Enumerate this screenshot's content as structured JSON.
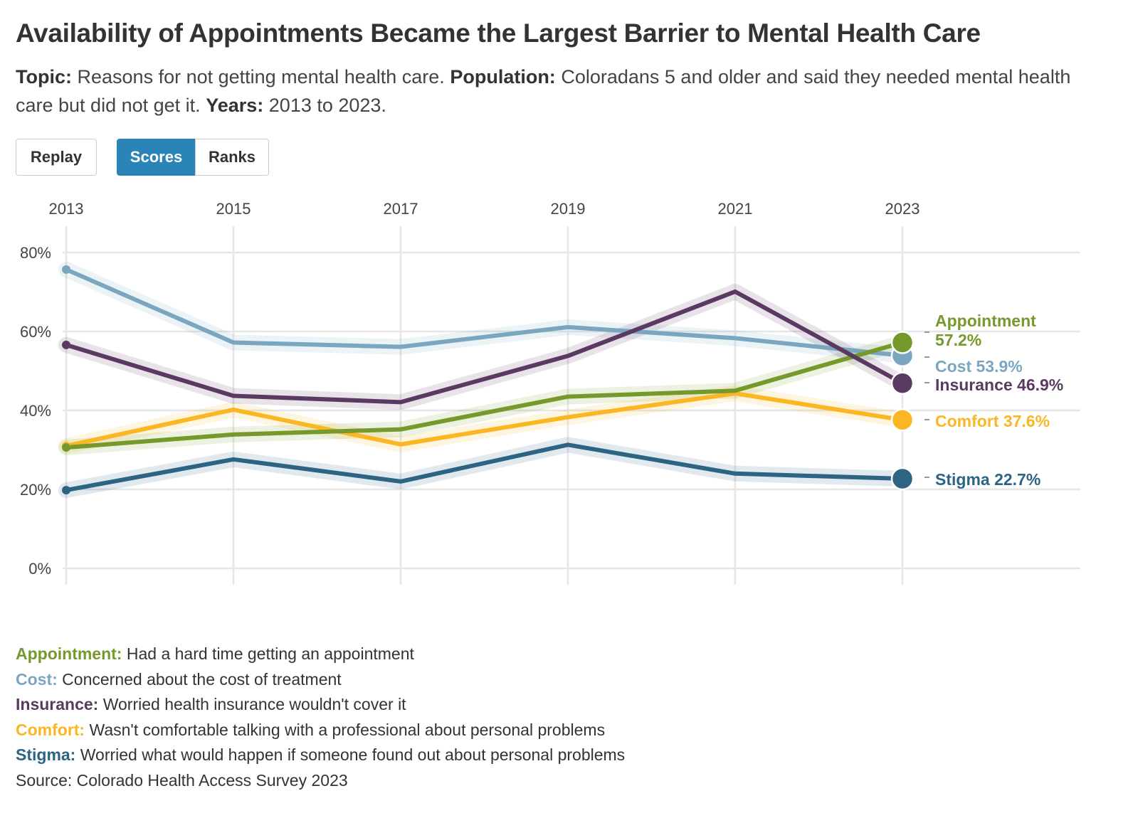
{
  "header": {
    "title": "Availability of Appointments Became the Largest Barrier to Mental Health Care",
    "subtitle": {
      "topic_label": "Topic:",
      "topic_text": "Reasons for not getting mental health care.",
      "population_label": "Population:",
      "population_text": "Coloradans 5 and older and said they needed mental health care but did not get it.",
      "years_label": "Years:",
      "years_text": "2013 to 2023."
    }
  },
  "controls": {
    "replay_label": "Replay",
    "scores_label": "Scores",
    "ranks_label": "Ranks",
    "active": "Scores"
  },
  "colors": {
    "appointment": "#76992c",
    "cost": "#7aa7bf",
    "insurance": "#5b3a62",
    "comfort": "#fbb723",
    "stigma": "#2d6484",
    "grid": "#e6e6e6",
    "tick": "#444444",
    "active_button": "#2b84b8"
  },
  "chart_data": {
    "type": "line",
    "x": [
      2013,
      2015,
      2017,
      2019,
      2021,
      2023
    ],
    "xticks": [
      "2013",
      "2015",
      "2017",
      "2019",
      "2021",
      "2023"
    ],
    "ylim": [
      0,
      80
    ],
    "yticks": [
      0,
      20,
      40,
      60,
      80
    ],
    "ytick_labels": [
      "0%",
      "20%",
      "40%",
      "60%",
      "80%"
    ],
    "grid": true,
    "series": [
      {
        "key": "cost",
        "name": "Cost",
        "end_label": "Cost 53.9%",
        "values": [
          75.7,
          57.2,
          56.1,
          61.1,
          58.3,
          53.9
        ]
      },
      {
        "key": "stigma",
        "name": "Stigma",
        "end_label": "Stigma 22.7%",
        "values": [
          19.8,
          27.6,
          22.0,
          31.3,
          24.0,
          22.7
        ]
      },
      {
        "key": "comfort",
        "name": "Comfort",
        "end_label": "Comfort 37.6%",
        "values": [
          31.0,
          40.2,
          31.4,
          38.3,
          44.3,
          37.6
        ]
      },
      {
        "key": "appointment",
        "name": "Appointment",
        "end_label_1": "Appointment",
        "end_label_2": "57.2%",
        "values": [
          30.6,
          33.9,
          35.2,
          43.5,
          45.0,
          57.2
        ]
      },
      {
        "key": "insurance",
        "name": "Insurance",
        "end_label": "Insurance 46.9%",
        "values": [
          56.6,
          43.7,
          42.1,
          53.8,
          70.1,
          46.9
        ]
      }
    ]
  },
  "footer": {
    "definitions": [
      {
        "key": "appointment",
        "label": "Appointment:",
        "text": "Had a hard time getting an appointment"
      },
      {
        "key": "cost",
        "label": "Cost:",
        "text": "Concerned about the cost of treatment"
      },
      {
        "key": "insurance",
        "label": "Insurance:",
        "text": "Worried health insurance wouldn't cover it"
      },
      {
        "key": "comfort",
        "label": "Comfort:",
        "text": "Wasn't comfortable talking with a professional about personal problems"
      },
      {
        "key": "stigma",
        "label": "Stigma:",
        "text": "Worried what would happen if someone found out about personal problems"
      }
    ],
    "source": "Source: Colorado Health Access Survey 2023"
  }
}
